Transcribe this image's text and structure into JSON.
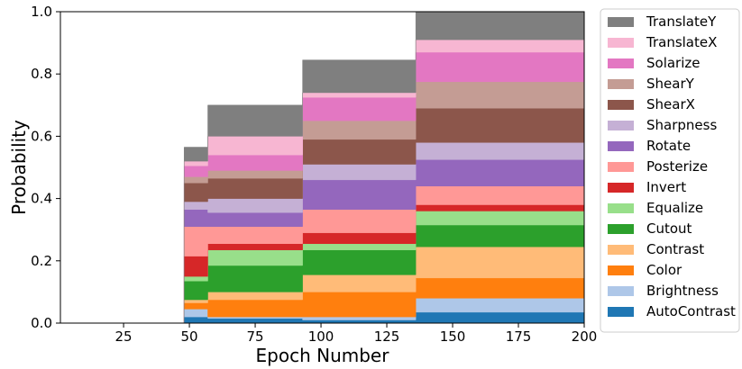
{
  "chart_data": {
    "type": "area",
    "title": "",
    "xlabel": "Epoch Number",
    "ylabel": "Probability",
    "xlim": [
      1,
      200
    ],
    "ylim": [
      0,
      1.0
    ],
    "x_ticks": [
      25,
      50,
      75,
      100,
      125,
      150,
      175,
      200
    ],
    "y_ticks": [
      0.0,
      0.2,
      0.4,
      0.6,
      0.8,
      1.0
    ],
    "y_tick_labels": [
      "0.0",
      "0.2",
      "0.4",
      "0.6",
      "0.8",
      "1.0"
    ],
    "legend_position": "right",
    "grid": false,
    "x": [
      1,
      48,
      48,
      57,
      57,
      93,
      93,
      136,
      136,
      200
    ],
    "series": [
      {
        "name": "AutoContrast",
        "color": "#1f77b4",
        "values": [
          0,
          0,
          0.02,
          0.02,
          0.015,
          0.015,
          0.01,
          0.01,
          0.035,
          0.035
        ]
      },
      {
        "name": "Brightness",
        "color": "#aec7e8",
        "values": [
          0,
          0,
          0.025,
          0.025,
          0.005,
          0.005,
          0.01,
          0.01,
          0.045,
          0.045
        ]
      },
      {
        "name": "Color",
        "color": "#ff7f0e",
        "values": [
          0,
          0,
          0.02,
          0.02,
          0.055,
          0.055,
          0.08,
          0.08,
          0.065,
          0.065
        ]
      },
      {
        "name": "Contrast",
        "color": "#ffbb78",
        "values": [
          0,
          0,
          0.01,
          0.01,
          0.025,
          0.025,
          0.055,
          0.055,
          0.1,
          0.1
        ]
      },
      {
        "name": "Cutout",
        "color": "#2ca02c",
        "values": [
          0,
          0,
          0.06,
          0.06,
          0.085,
          0.085,
          0.08,
          0.08,
          0.07,
          0.07
        ]
      },
      {
        "name": "Equalize",
        "color": "#98df8a",
        "values": [
          0,
          0,
          0.015,
          0.015,
          0.05,
          0.05,
          0.02,
          0.02,
          0.045,
          0.045
        ]
      },
      {
        "name": "Invert",
        "color": "#d62728",
        "values": [
          0,
          0,
          0.065,
          0.065,
          0.02,
          0.02,
          0.035,
          0.035,
          0.02,
          0.02
        ]
      },
      {
        "name": "Posterize",
        "color": "#ff9896",
        "values": [
          0,
          0,
          0.095,
          0.095,
          0.055,
          0.055,
          0.075,
          0.075,
          0.06,
          0.06
        ]
      },
      {
        "name": "Rotate",
        "color": "#9467bd",
        "values": [
          0,
          0,
          0.055,
          0.055,
          0.045,
          0.045,
          0.095,
          0.095,
          0.085,
          0.085
        ]
      },
      {
        "name": "Sharpness",
        "color": "#c5b0d5",
        "values": [
          0,
          0,
          0.025,
          0.025,
          0.045,
          0.045,
          0.05,
          0.05,
          0.055,
          0.055
        ]
      },
      {
        "name": "ShearX",
        "color": "#8c564b",
        "values": [
          0,
          0,
          0.06,
          0.06,
          0.065,
          0.065,
          0.08,
          0.08,
          0.11,
          0.11
        ]
      },
      {
        "name": "ShearY",
        "color": "#c49c94",
        "values": [
          0,
          0,
          0.02,
          0.02,
          0.025,
          0.025,
          0.06,
          0.06,
          0.085,
          0.085
        ]
      },
      {
        "name": "Solarize",
        "color": "#e377c2",
        "values": [
          0,
          0,
          0.035,
          0.035,
          0.05,
          0.05,
          0.075,
          0.075,
          0.095,
          0.095
        ]
      },
      {
        "name": "TranslateX",
        "color": "#f7b6d2",
        "values": [
          0,
          0,
          0.015,
          0.015,
          0.06,
          0.06,
          0.015,
          0.015,
          0.04,
          0.04
        ]
      },
      {
        "name": "TranslateY",
        "color": "#7f7f7f",
        "values": [
          0,
          0,
          0.045,
          0.045,
          0.1,
          0.1,
          0.105,
          0.105,
          0.09,
          0.09
        ]
      }
    ]
  }
}
